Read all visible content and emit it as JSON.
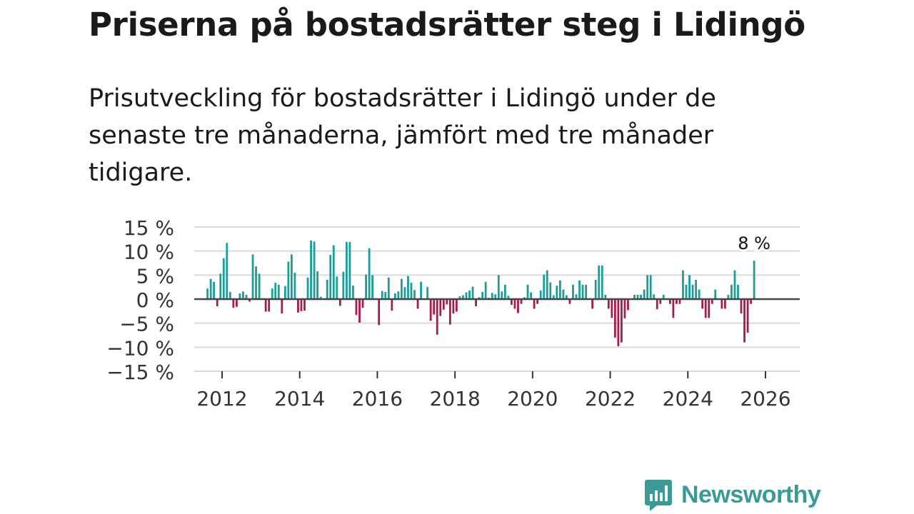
{
  "title": "Priserna på bostadsrätter steg i Lidingö",
  "subtitle": "Prisutveckling för bostadsrätter i Lidingö under de senaste tre månaderna, jämfört med tre månader tidigare.",
  "brand": {
    "name": "Newsworthy",
    "icon": "newsworthy-logo-icon"
  },
  "colors": {
    "positive": "#1b9e9a",
    "negative": "#a51d4b",
    "grid": "#d9d9d9",
    "zero": "#444444",
    "brand": "#3a9a95"
  },
  "chart_data": {
    "type": "bar",
    "title": "",
    "xlabel": "",
    "ylabel": "",
    "ylim": [
      -15,
      15
    ],
    "y_ticks": [
      15,
      10,
      5,
      0,
      -5,
      -10,
      -15
    ],
    "y_tick_labels": [
      "15 %",
      "10 %",
      "5 %",
      "0 %",
      "−5 %",
      "−10 %",
      "−15 %"
    ],
    "x_tick_labels": [
      "2012",
      "2014",
      "2016",
      "2018",
      "2020",
      "2022",
      "2024",
      "2026"
    ],
    "x_ticks": [
      2012,
      2014,
      2016,
      2018,
      2020,
      2022,
      2024,
      2026
    ],
    "start": 2011.625,
    "step_months": 1,
    "end_label": "8 %",
    "values": [
      2.2,
      4.2,
      3.6,
      -1.5,
      5.3,
      8.5,
      11.7,
      1.5,
      -1.8,
      -1.6,
      1.2,
      1.6,
      0.9,
      -0.5,
      9.3,
      6.8,
      5.3,
      0,
      -2.6,
      -2.6,
      2.2,
      3.4,
      3.0,
      -3.0,
      2.7,
      7.8,
      9.3,
      5.5,
      -2.8,
      -2.5,
      -2.4,
      4.5,
      12.2,
      12.0,
      5.8,
      0.5,
      0,
      4.0,
      9.2,
      11.2,
      4.7,
      -1.4,
      5.7,
      11.9,
      11.9,
      2.8,
      -3.3,
      -4.9,
      -1.8,
      5.1,
      10.6,
      5.0,
      0,
      -5.4,
      1.7,
      1.5,
      4.5,
      -2.4,
      1.2,
      1.6,
      4.2,
      2.5,
      4.8,
      3.4,
      1.9,
      -2.0,
      3.6,
      0,
      2.5,
      -4.5,
      -3.2,
      -7.4,
      -3.5,
      -2.2,
      -1.1,
      -5.3,
      -3.0,
      -2.6,
      0.6,
      0.8,
      1.4,
      1.8,
      2.6,
      -1.5,
      0.4,
      1.5,
      3.6,
      0.3,
      1.3,
      1.0,
      5.0,
      1.6,
      3.0,
      0.7,
      -1.2,
      -2.0,
      -2.9,
      -1.0,
      0.4,
      3.0,
      1.4,
      -2.0,
      -1.0,
      1.8,
      5.1,
      6.0,
      3.5,
      0.8,
      2.8,
      3.9,
      2.0,
      0.8,
      -1.0,
      3.0,
      1.0,
      3.9,
      3.0,
      3.0,
      0,
      -2.0,
      4.0,
      7.0,
      7.0,
      0.9,
      -2.0,
      -3.9,
      -8.0,
      -9.8,
      -9.0,
      -4.0,
      -2.3,
      0,
      0.9,
      0.9,
      0.9,
      2.0,
      5.0,
      5.0,
      1.0,
      -2.1,
      -1.0,
      0.9,
      0,
      -1.0,
      -3.9,
      -1.0,
      -1.0,
      6.0,
      3.0,
      5.0,
      3.0,
      4.0,
      2.0,
      -2.0,
      -3.9,
      -3.9,
      -1.0,
      2.0,
      0,
      -2.0,
      -2.0,
      0.9,
      3.0,
      6.0,
      3.0,
      -3.0,
      -9.0,
      -7.0,
      -1.0,
      8.0
    ]
  }
}
